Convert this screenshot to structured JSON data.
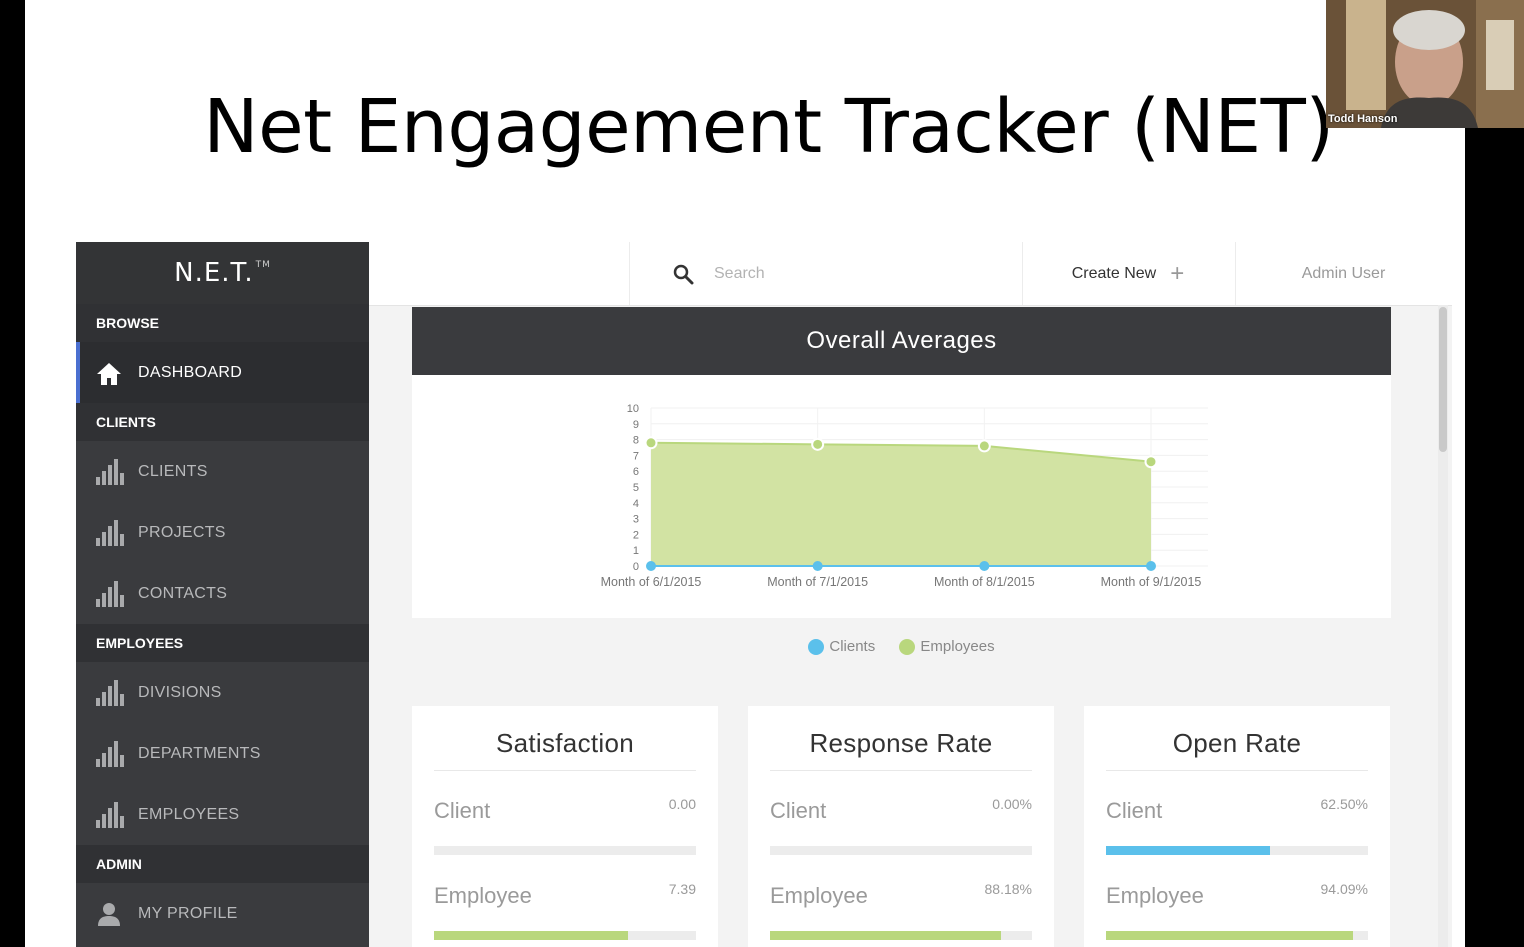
{
  "slide": {
    "title": "Net Engagement Tracker (NET)"
  },
  "sidebar": {
    "logo": "N.E.T.",
    "logo_tm": "TM",
    "sections": {
      "browse": "BROWSE",
      "clients": "CLIENTS",
      "employees": "EMPLOYEES",
      "admin": "ADMIN"
    },
    "items": {
      "dashboard": "DASHBOARD",
      "clients": "CLIENTS",
      "projects": "PROJECTS",
      "contacts": "CONTACTS",
      "divisions": "DIVISIONS",
      "departments": "DEPARTMENTS",
      "employees": "EMPLOYEES",
      "my_profile": "MY PROFILE"
    }
  },
  "topbar": {
    "search_placeholder": "Search",
    "create_new": "Create New",
    "admin_user": "Admin User"
  },
  "chart_card": {
    "title": "Overall Averages"
  },
  "chart_data": {
    "type": "area",
    "title": "Overall Averages",
    "categories": [
      "Month of 6/1/2015",
      "Month of 7/1/2015",
      "Month of 8/1/2015",
      "Month of 9/1/2015"
    ],
    "series": [
      {
        "name": "Clients",
        "values": [
          0,
          0,
          0,
          0
        ],
        "color": "#5bc0eb"
      },
      {
        "name": "Employees",
        "values": [
          7.8,
          7.7,
          7.6,
          6.6
        ],
        "color": "#b9d77d"
      }
    ],
    "ylim": [
      0,
      10
    ],
    "yticks": [
      0,
      1,
      2,
      3,
      4,
      5,
      6,
      7,
      8,
      9,
      10
    ],
    "legend": "bottom"
  },
  "legend": {
    "clients": "Clients",
    "employees": "Employees"
  },
  "cards": [
    {
      "title": "Satisfaction",
      "client_label": "Client",
      "client_value": "0.00",
      "client_fill": 0,
      "employee_label": "Employee",
      "employee_value": "7.39",
      "employee_fill": 0.739
    },
    {
      "title": "Response Rate",
      "client_label": "Client",
      "client_value": "0.00%",
      "client_fill": 0,
      "employee_label": "Employee",
      "employee_value": "88.18%",
      "employee_fill": 0.8818
    },
    {
      "title": "Open Rate",
      "client_label": "Client",
      "client_value": "62.50%",
      "client_fill": 0.625,
      "employee_label": "Employee",
      "employee_value": "94.09%",
      "employee_fill": 0.9409
    }
  ],
  "colors": {
    "client_bar": "#5bc0eb",
    "employee_bar": "#b9d77d",
    "sidebar": "#3a3b3e",
    "accent": "#4a6fd0"
  },
  "webcam": {
    "name": "Todd Hanson"
  }
}
